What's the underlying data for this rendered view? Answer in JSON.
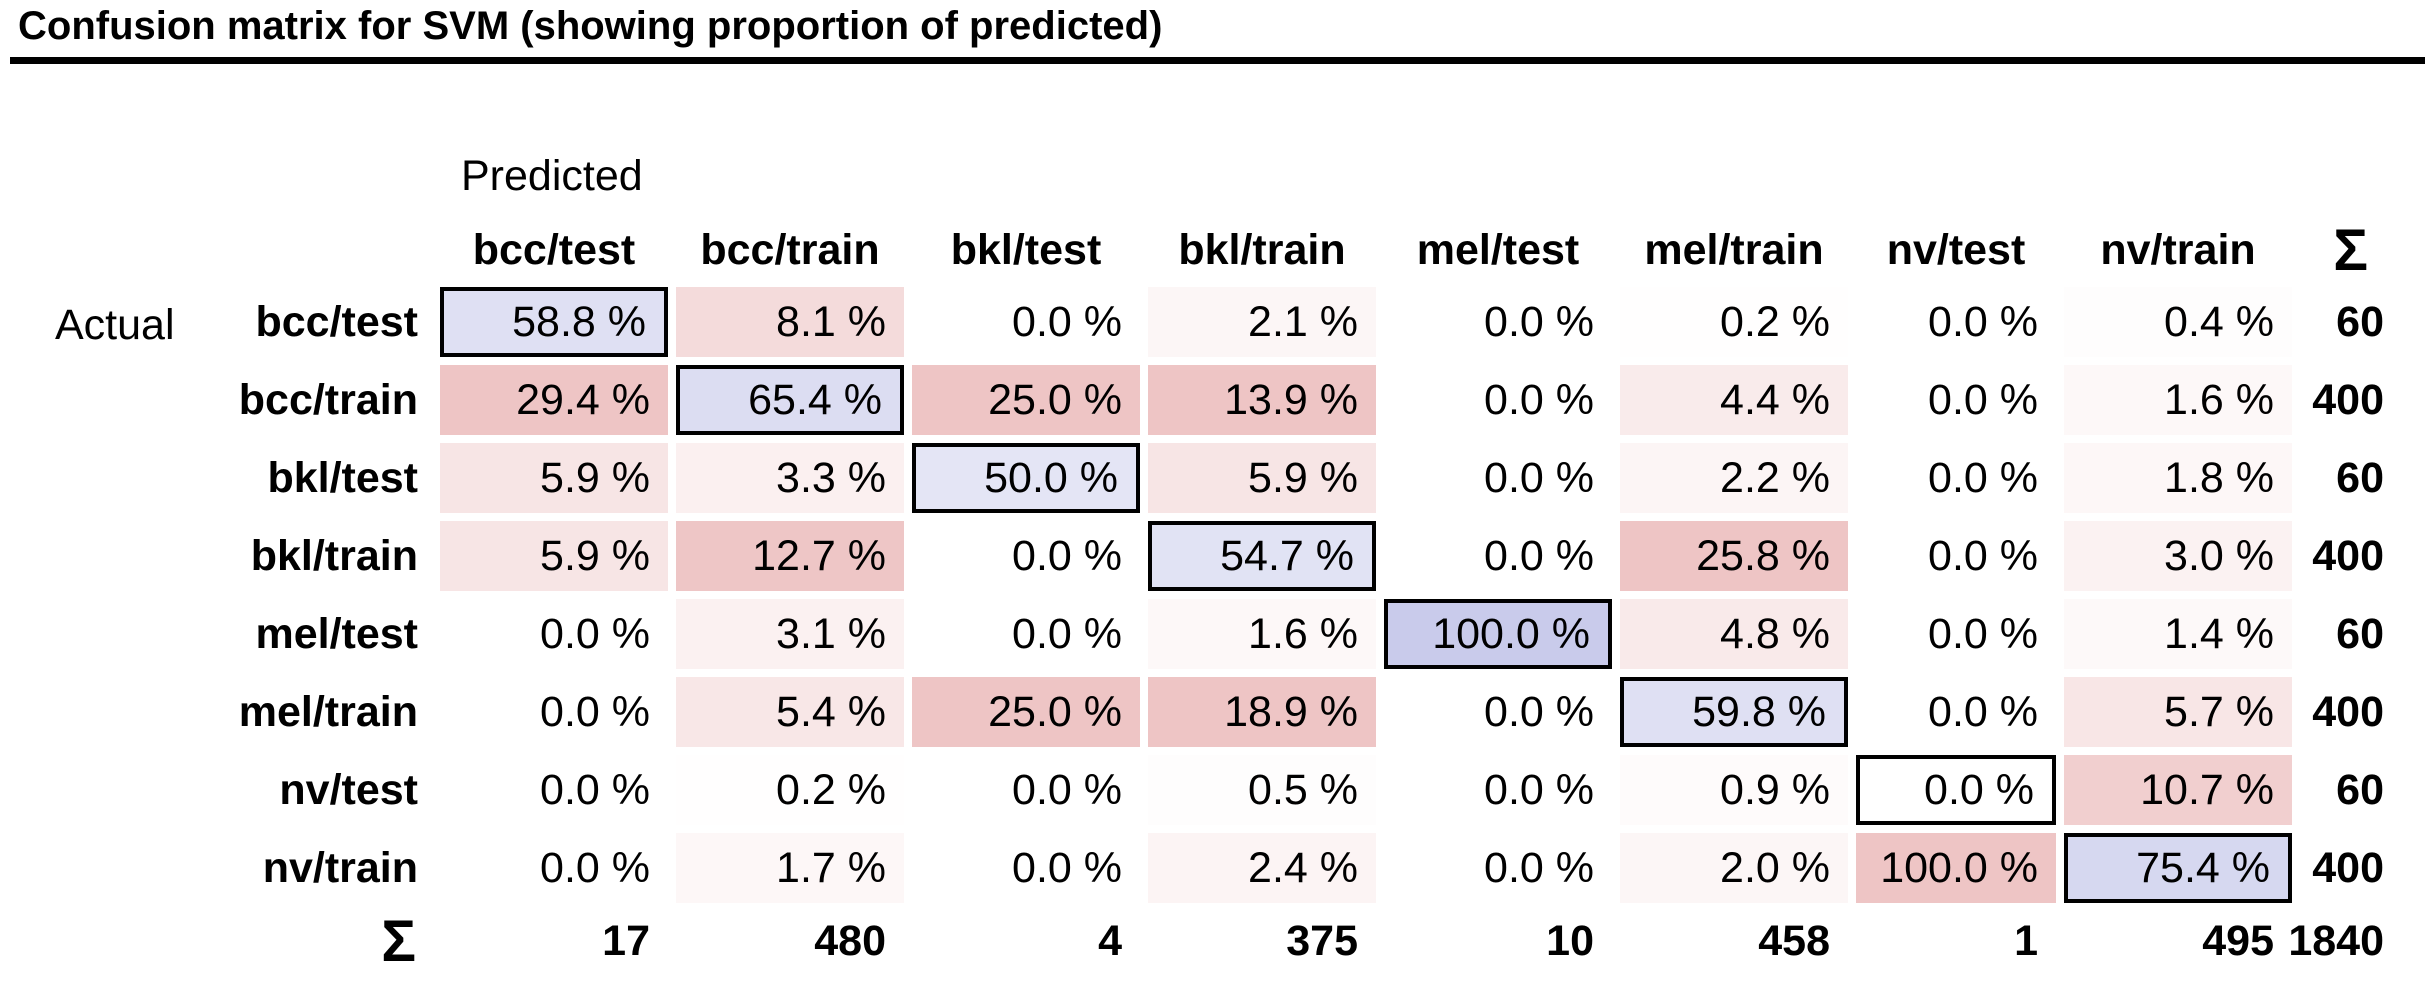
{
  "title": "Confusion matrix for SVM (showing proportion of predicted)",
  "chart_data": {
    "type": "heatmap",
    "title": "Confusion matrix for SVM (showing proportion of predicted)",
    "axis": {
      "row": "Actual",
      "col": "Predicted"
    },
    "sum_symbol": "Σ",
    "unit": "%",
    "value_decimals": 1,
    "labels": [
      "bcc/test",
      "bcc/train",
      "bkl/test",
      "bkl/train",
      "mel/test",
      "mel/train",
      "nv/test",
      "nv/train"
    ],
    "values": [
      [
        58.8,
        8.1,
        0.0,
        2.1,
        0.0,
        0.2,
        0.0,
        0.4
      ],
      [
        29.4,
        65.4,
        25.0,
        13.9,
        0.0,
        4.4,
        0.0,
        1.6
      ],
      [
        5.9,
        3.3,
        50.0,
        5.9,
        0.0,
        2.2,
        0.0,
        1.8
      ],
      [
        5.9,
        12.7,
        0.0,
        54.7,
        0.0,
        25.8,
        0.0,
        3.0
      ],
      [
        0.0,
        3.1,
        0.0,
        1.6,
        100.0,
        4.8,
        0.0,
        1.4
      ],
      [
        0.0,
        5.4,
        25.0,
        18.9,
        0.0,
        59.8,
        0.0,
        5.7
      ],
      [
        0.0,
        0.2,
        0.0,
        0.5,
        0.0,
        0.9,
        0.0,
        10.7
      ],
      [
        0.0,
        1.7,
        0.0,
        2.4,
        0.0,
        2.0,
        100.0,
        75.4
      ]
    ],
    "row_sums": [
      60,
      400,
      60,
      400,
      60,
      400,
      60,
      400
    ],
    "col_sums": [
      17,
      480,
      4,
      375,
      10,
      458,
      1,
      495
    ],
    "total": 1840,
    "colors": {
      "diag_max": "#c9cbeb",
      "offdiag_max": "#eec5c5",
      "offdiag_cap_percent": 13,
      "diag_border": "#000000",
      "background": "#ffffff",
      "rule": "#000000"
    },
    "layout_hints": {
      "diagonal_cells_outlined": true,
      "grid": "off",
      "legend": "none"
    }
  }
}
